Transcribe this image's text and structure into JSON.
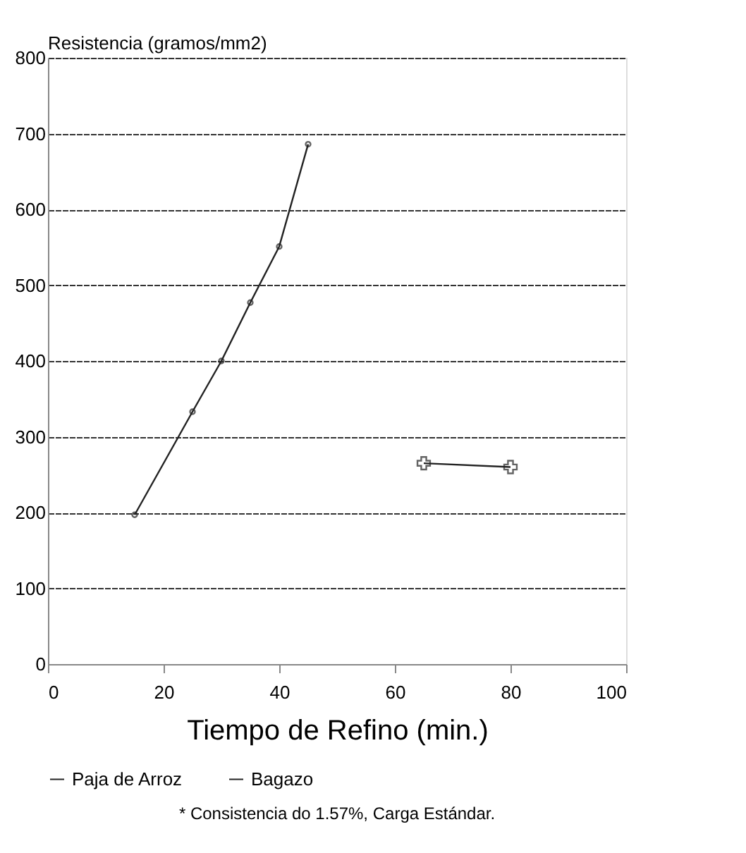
{
  "chart_data": {
    "type": "line",
    "ylabel": "Resistencia (gramos/mm2)",
    "xlabel": "Tiempo de Refino (min.)",
    "xlim": [
      0,
      100
    ],
    "xticks": [
      0,
      20,
      40,
      60,
      80,
      100
    ],
    "ylim": [
      0,
      800
    ],
    "yticks": [
      0,
      100,
      200,
      300,
      400,
      500,
      600,
      700,
      800
    ],
    "grid": "y",
    "legend": "bottom",
    "series": [
      {
        "name": "Paja de Arroz",
        "color": "#222222",
        "marker": "circle",
        "x": [
          15,
          25,
          30,
          35,
          40,
          45
        ],
        "values": [
          197,
          333,
          400,
          477,
          551,
          686
        ]
      },
      {
        "name": "Bagazo",
        "color": "#222222",
        "marker": "cross",
        "x": [
          65,
          80
        ],
        "values": [
          265,
          260
        ]
      }
    ],
    "annotations": [
      "* Consistencia do 1.57%, Carga Estándar."
    ]
  }
}
